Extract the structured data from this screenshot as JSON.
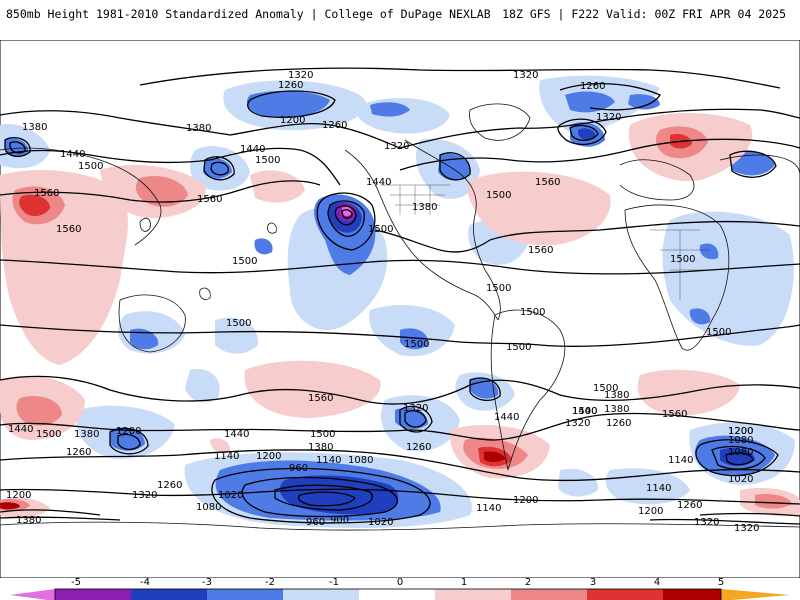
{
  "header": {
    "left": "850mb Height 1981-2010 Standardized Anomaly | College of DuPage NEXLAB",
    "right": "18Z GFS | F222 Valid: 00Z FRI APR 04 2025"
  },
  "colors": {
    "neg5": "#e070e0",
    "neg4": "#8a1fb0",
    "neg3": "#1f3fbf",
    "neg2": "#4f7be6",
    "neg1": "#c9dcf7",
    "pos1": "#f6cccc",
    "pos2": "#ee8888",
    "pos3": "#dd3333",
    "pos4": "#aa0000",
    "pos5": "#f5a623"
  },
  "contour_labels": [
    {
      "id": "c01",
      "text": "1320"
    },
    {
      "id": "c02",
      "text": "1320"
    },
    {
      "id": "c03",
      "text": "1260"
    },
    {
      "id": "c04",
      "text": "1260"
    },
    {
      "id": "c05",
      "text": "1200"
    },
    {
      "id": "c06",
      "text": "1260"
    },
    {
      "id": "c07",
      "text": "1380"
    },
    {
      "id": "c08",
      "text": "1380"
    },
    {
      "id": "c09",
      "text": "1440"
    },
    {
      "id": "c10",
      "text": "1500"
    },
    {
      "id": "c11",
      "text": "1440"
    },
    {
      "id": "c12",
      "text": "1500"
    },
    {
      "id": "c13",
      "text": "1320"
    },
    {
      "id": "c14",
      "text": "1440"
    },
    {
      "id": "c15",
      "text": "1380"
    },
    {
      "id": "c16",
      "text": "1500"
    },
    {
      "id": "c17",
      "text": "1500"
    },
    {
      "id": "c18",
      "text": "1560"
    },
    {
      "id": "c19",
      "text": "1560"
    },
    {
      "id": "c20",
      "text": "1560"
    },
    {
      "id": "c21",
      "text": "1560"
    },
    {
      "id": "c22",
      "text": "1560"
    },
    {
      "id": "c23",
      "text": "1500"
    },
    {
      "id": "c24",
      "text": "1500"
    },
    {
      "id": "c25",
      "text": "1500"
    },
    {
      "id": "c26",
      "text": "1500"
    },
    {
      "id": "c27",
      "text": "1500"
    },
    {
      "id": "c28",
      "text": "1500"
    },
    {
      "id": "c29",
      "text": "1500"
    },
    {
      "id": "c30",
      "text": "1500"
    },
    {
      "id": "c31",
      "text": "1500"
    },
    {
      "id": "c32",
      "text": "1560"
    },
    {
      "id": "c33",
      "text": "1560"
    },
    {
      "id": "c34",
      "text": "1440"
    },
    {
      "id": "c35",
      "text": "1500"
    },
    {
      "id": "c36",
      "text": "1380"
    },
    {
      "id": "c37",
      "text": "1200"
    },
    {
      "id": "c38",
      "text": "1440"
    },
    {
      "id": "c39",
      "text": "1500"
    },
    {
      "id": "c40",
      "text": "1380"
    },
    {
      "id": "c41",
      "text": "1320"
    },
    {
      "id": "c42",
      "text": "1440"
    },
    {
      "id": "c43",
      "text": "1500"
    },
    {
      "id": "c44",
      "text": "1440"
    },
    {
      "id": "c45",
      "text": "1380"
    },
    {
      "id": "c46",
      "text": "1320"
    },
    {
      "id": "c47",
      "text": "1260"
    },
    {
      "id": "c48",
      "text": "1200"
    },
    {
      "id": "c49",
      "text": "1080"
    },
    {
      "id": "c50",
      "text": "1260"
    },
    {
      "id": "c51",
      "text": "1140"
    },
    {
      "id": "c52",
      "text": "1200"
    },
    {
      "id": "c53",
      "text": "1140"
    },
    {
      "id": "c54",
      "text": "1080"
    },
    {
      "id": "c55",
      "text": "960"
    },
    {
      "id": "c56",
      "text": "1020"
    },
    {
      "id": "c57",
      "text": "1080"
    },
    {
      "id": "c58",
      "text": "960"
    },
    {
      "id": "c59",
      "text": "900"
    },
    {
      "id": "c60",
      "text": "1020"
    },
    {
      "id": "c61",
      "text": "1140"
    },
    {
      "id": "c62",
      "text": "1200"
    },
    {
      "id": "c63",
      "text": "1140"
    },
    {
      "id": "c64",
      "text": "1200"
    },
    {
      "id": "c65",
      "text": "1260"
    },
    {
      "id": "c66",
      "text": "1320"
    },
    {
      "id": "c67",
      "text": "1320"
    },
    {
      "id": "c68",
      "text": "1200"
    },
    {
      "id": "c69",
      "text": "1080"
    },
    {
      "id": "c70",
      "text": "1020"
    },
    {
      "id": "c71",
      "text": "1140"
    },
    {
      "id": "c72",
      "text": "1200"
    },
    {
      "id": "c73",
      "text": "1260"
    },
    {
      "id": "c74",
      "text": "1320"
    },
    {
      "id": "c75",
      "text": "1380"
    },
    {
      "id": "c76",
      "text": "1260"
    },
    {
      "id": "c77",
      "text": "1380"
    },
    {
      "id": "c78",
      "text": "1320"
    }
  ],
  "colorbar": {
    "ticks": [
      "-5",
      "-4",
      "-3",
      "-2",
      "-1",
      "0",
      "1",
      "2",
      "3",
      "4",
      "5"
    ]
  }
}
